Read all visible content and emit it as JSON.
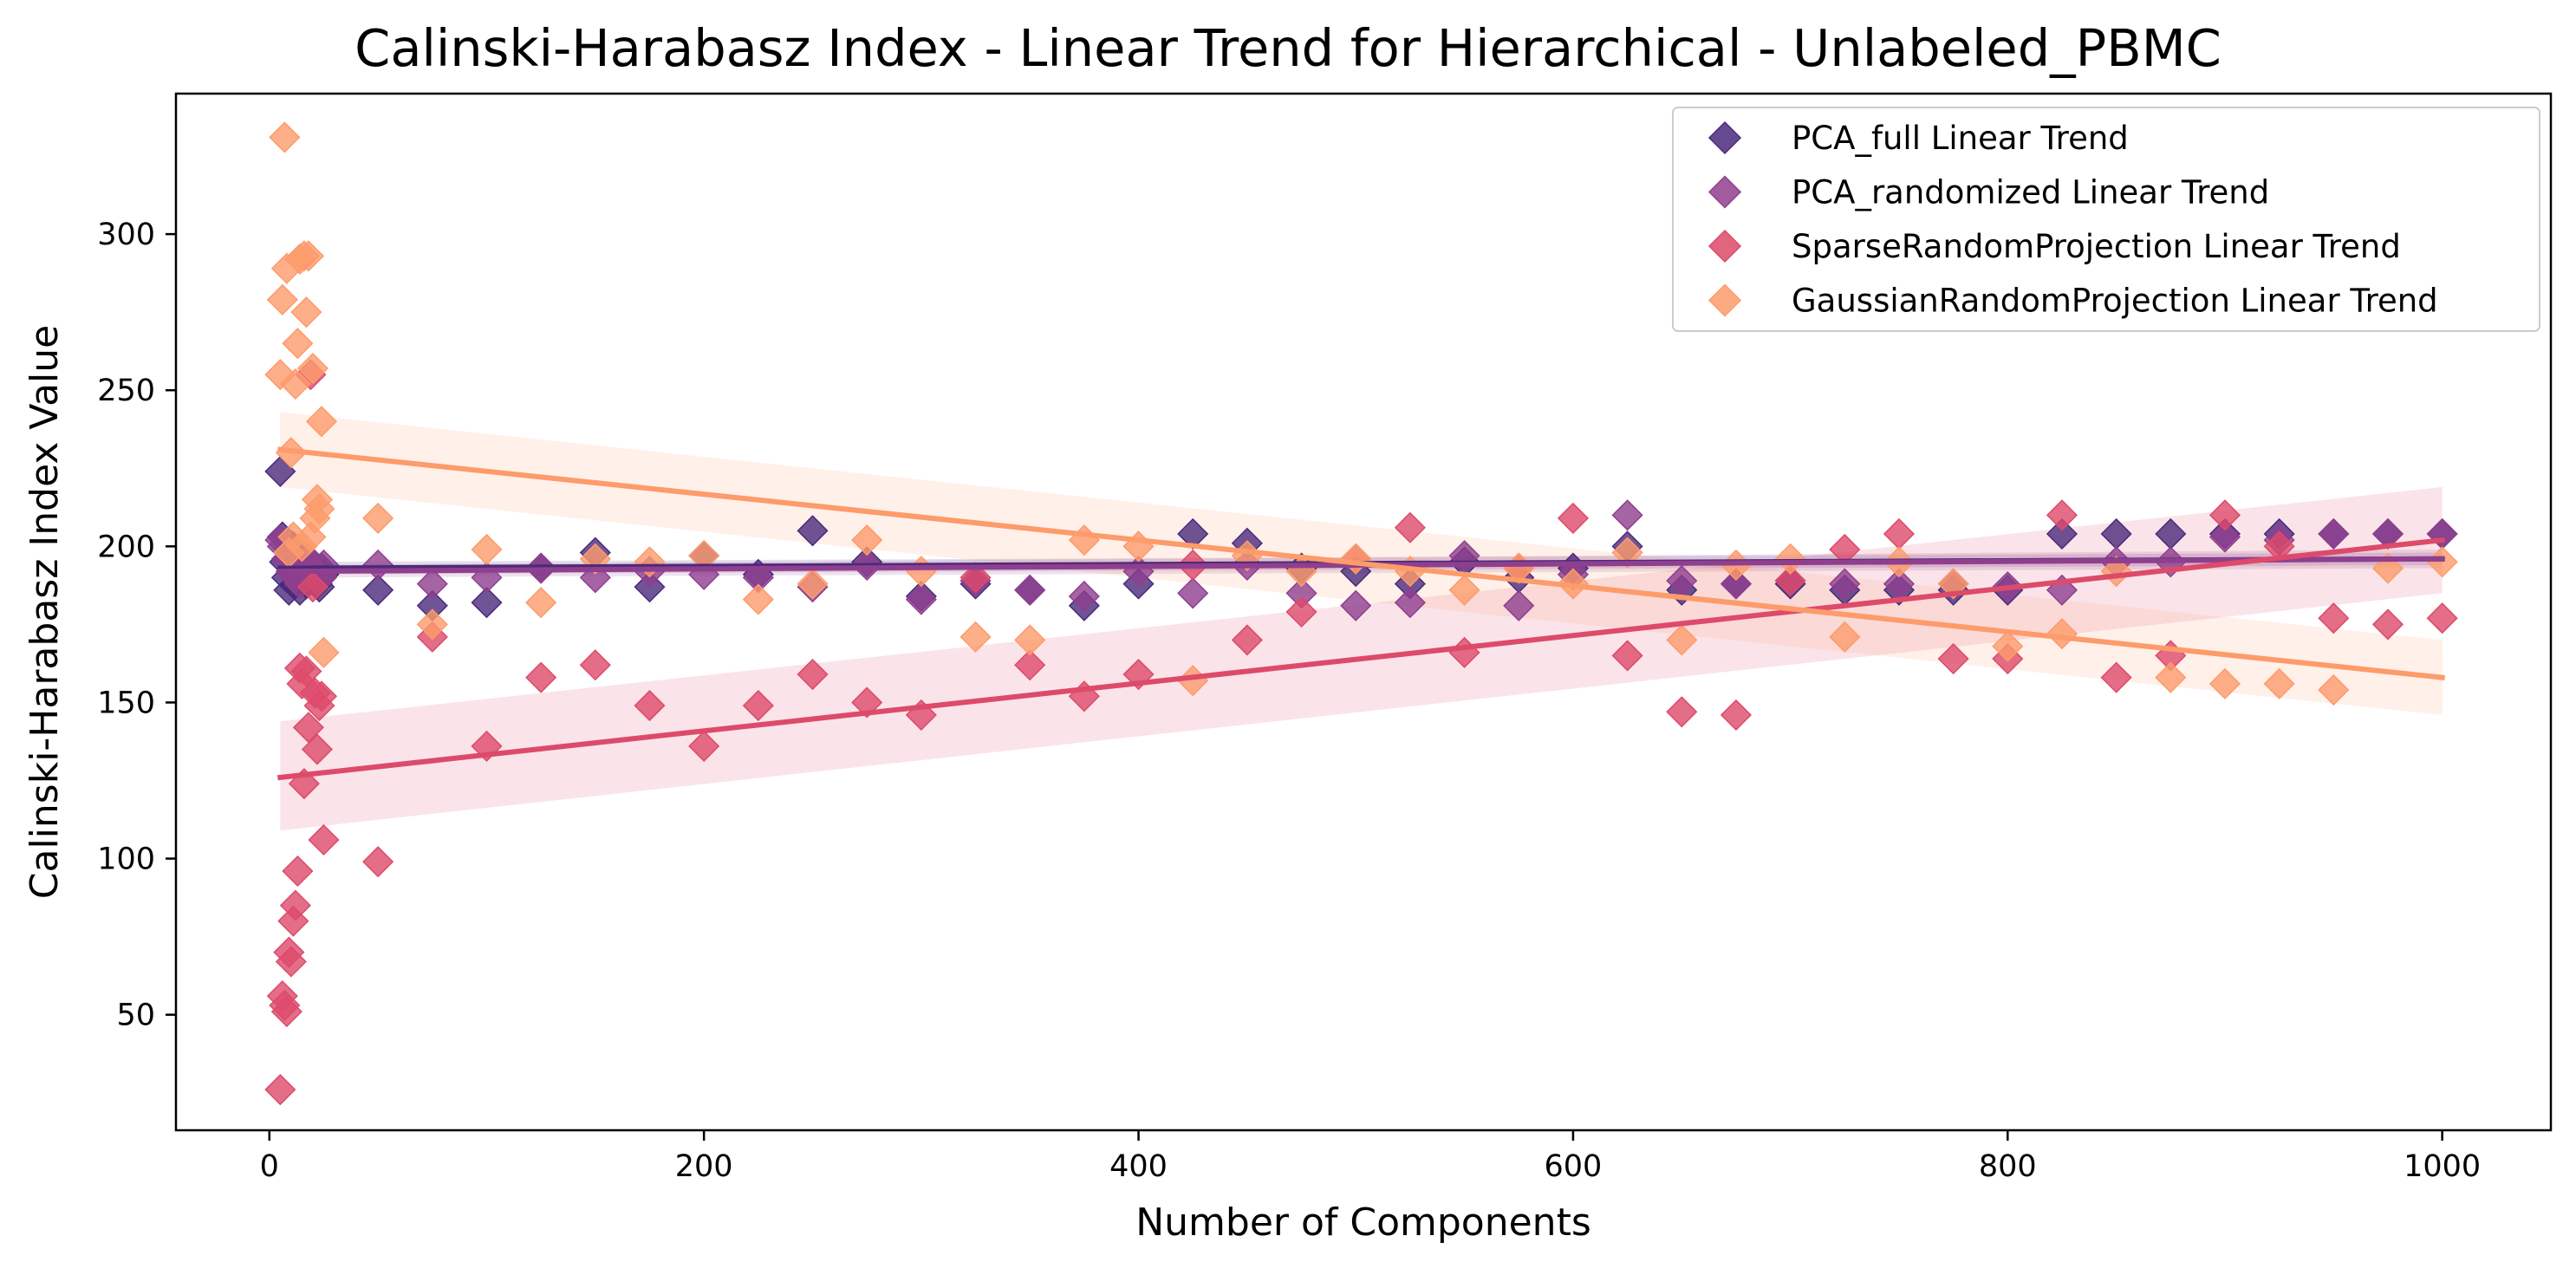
{
  "chart_data": {
    "type": "scatter",
    "title": "Calinski-Harabasz Index - Linear Trend for Hierarchical - Unlabeled_PBMC",
    "xlabel": "Number of Components",
    "ylabel": "Calinski-Harabasz Index Value",
    "xlim": [
      -43,
      1050
    ],
    "ylim": [
      13,
      345
    ],
    "x_ticks": [
      0,
      200,
      400,
      600,
      800,
      1000
    ],
    "x_tick_labels": [
      "0",
      "200",
      "400",
      "600",
      "800",
      "1000"
    ],
    "y_ticks": [
      50,
      100,
      150,
      200,
      250,
      300
    ],
    "y_tick_labels": [
      "50",
      "100",
      "150",
      "200",
      "250",
      "300"
    ],
    "grid": false,
    "legend_position": "top-right",
    "marker": "diamond",
    "series": [
      {
        "name": "PCA_full Linear Trend",
        "color": "#4b2a7b",
        "points": [
          [
            5,
            224
          ],
          [
            6,
            203
          ],
          [
            7,
            195
          ],
          [
            8,
            190
          ],
          [
            9,
            186
          ],
          [
            10,
            199
          ],
          [
            11,
            200
          ],
          [
            12,
            188
          ],
          [
            13,
            195
          ],
          [
            14,
            186
          ],
          [
            15,
            194
          ],
          [
            16,
            190
          ],
          [
            17,
            188
          ],
          [
            18,
            192
          ],
          [
            19,
            195
          ],
          [
            20,
            191
          ],
          [
            21,
            189
          ],
          [
            22,
            188
          ],
          [
            23,
            187
          ],
          [
            24,
            193
          ],
          [
            25,
            191
          ],
          [
            50,
            186
          ],
          [
            75,
            181
          ],
          [
            100,
            182
          ],
          [
            125,
            193
          ],
          [
            150,
            198
          ],
          [
            175,
            187
          ],
          [
            200,
            197
          ],
          [
            225,
            191
          ],
          [
            250,
            205
          ],
          [
            275,
            195
          ],
          [
            300,
            184
          ],
          [
            325,
            188
          ],
          [
            350,
            186
          ],
          [
            375,
            181
          ],
          [
            400,
            188
          ],
          [
            425,
            204
          ],
          [
            450,
            201
          ],
          [
            475,
            193
          ],
          [
            500,
            192
          ],
          [
            525,
            188
          ],
          [
            550,
            195
          ],
          [
            575,
            190
          ],
          [
            600,
            193
          ],
          [
            625,
            200
          ],
          [
            650,
            186
          ],
          [
            675,
            188
          ],
          [
            700,
            188
          ],
          [
            725,
            186
          ],
          [
            750,
            186
          ],
          [
            775,
            186
          ],
          [
            800,
            186
          ],
          [
            825,
            204
          ],
          [
            850,
            204
          ],
          [
            875,
            204
          ],
          [
            900,
            204
          ],
          [
            925,
            204
          ],
          [
            950,
            204
          ],
          [
            975,
            204
          ],
          [
            1000,
            204
          ]
        ],
        "trend": {
          "x": [
            5,
            1000
          ],
          "y": [
            193,
            196
          ]
        },
        "ci_lower": [
          191,
          194
        ],
        "ci_upper": [
          195,
          198
        ]
      },
      {
        "name": "PCA_randomized Linear Trend",
        "color": "#8f3f8e",
        "points": [
          [
            5,
            202
          ],
          [
            6,
            200
          ],
          [
            8,
            196
          ],
          [
            10,
            192
          ],
          [
            12,
            190
          ],
          [
            14,
            188
          ],
          [
            16,
            194
          ],
          [
            18,
            196
          ],
          [
            20,
            193
          ],
          [
            22,
            189
          ],
          [
            24,
            190
          ],
          [
            25,
            194
          ],
          [
            50,
            194
          ],
          [
            75,
            188
          ],
          [
            100,
            190
          ],
          [
            125,
            193
          ],
          [
            150,
            190
          ],
          [
            175,
            192
          ],
          [
            200,
            191
          ],
          [
            225,
            190
          ],
          [
            250,
            187
          ],
          [
            275,
            194
          ],
          [
            300,
            183
          ],
          [
            325,
            189
          ],
          [
            350,
            186
          ],
          [
            375,
            184
          ],
          [
            400,
            192
          ],
          [
            425,
            185
          ],
          [
            450,
            194
          ],
          [
            475,
            185
          ],
          [
            500,
            181
          ],
          [
            525,
            182
          ],
          [
            550,
            197
          ],
          [
            575,
            181
          ],
          [
            600,
            191
          ],
          [
            625,
            210
          ],
          [
            650,
            189
          ],
          [
            675,
            188
          ],
          [
            700,
            189
          ],
          [
            725,
            188
          ],
          [
            750,
            188
          ],
          [
            775,
            188
          ],
          [
            800,
            187
          ],
          [
            825,
            186
          ],
          [
            850,
            195
          ],
          [
            875,
            195
          ],
          [
            900,
            203
          ],
          [
            925,
            202
          ],
          [
            950,
            204
          ],
          [
            975,
            204
          ],
          [
            1000,
            204
          ]
        ],
        "trend": {
          "x": [
            5,
            1000
          ],
          "y": [
            192,
            196
          ]
        },
        "ci_lower": [
          190,
          193
        ],
        "ci_upper": [
          194,
          199
        ]
      },
      {
        "name": "SparseRandomProjection Linear Trend",
        "color": "#dd4a6a",
        "points": [
          [
            5,
            26
          ],
          [
            6,
            56
          ],
          [
            7,
            53
          ],
          [
            8,
            51
          ],
          [
            9,
            70
          ],
          [
            10,
            67
          ],
          [
            11,
            80
          ],
          [
            12,
            85
          ],
          [
            13,
            96
          ],
          [
            14,
            161
          ],
          [
            15,
            156
          ],
          [
            16,
            124
          ],
          [
            17,
            160
          ],
          [
            18,
            142
          ],
          [
            19,
            255
          ],
          [
            20,
            187
          ],
          [
            21,
            153
          ],
          [
            22,
            135
          ],
          [
            23,
            149
          ],
          [
            24,
            152
          ],
          [
            25,
            106
          ],
          [
            50,
            99
          ],
          [
            75,
            171
          ],
          [
            100,
            136
          ],
          [
            125,
            158
          ],
          [
            150,
            162
          ],
          [
            175,
            149
          ],
          [
            200,
            136
          ],
          [
            225,
            149
          ],
          [
            250,
            159
          ],
          [
            275,
            150
          ],
          [
            300,
            146
          ],
          [
            325,
            190
          ],
          [
            350,
            162
          ],
          [
            375,
            152
          ],
          [
            400,
            159
          ],
          [
            425,
            194
          ],
          [
            450,
            170
          ],
          [
            475,
            179
          ],
          [
            500,
            196
          ],
          [
            525,
            206
          ],
          [
            550,
            166
          ],
          [
            575,
            193
          ],
          [
            600,
            209
          ],
          [
            625,
            165
          ],
          [
            650,
            147
          ],
          [
            675,
            146
          ],
          [
            700,
            189
          ],
          [
            725,
            199
          ],
          [
            750,
            204
          ],
          [
            775,
            164
          ],
          [
            800,
            164
          ],
          [
            825,
            210
          ],
          [
            850,
            158
          ],
          [
            875,
            165
          ],
          [
            900,
            210
          ],
          [
            925,
            200
          ],
          [
            950,
            177
          ],
          [
            975,
            175
          ],
          [
            1000,
            177
          ]
        ],
        "trend": {
          "x": [
            5,
            1000
          ],
          "y": [
            126,
            202
          ]
        },
        "ci_lower": [
          109,
          185
        ],
        "ci_upper": [
          144,
          219
        ]
      },
      {
        "name": "GaussianRandomProjection Linear Trend",
        "color": "#fd9b6b",
        "points": [
          [
            5,
            255
          ],
          [
            6,
            279
          ],
          [
            7,
            331
          ],
          [
            8,
            289
          ],
          [
            9,
            198
          ],
          [
            10,
            230
          ],
          [
            11,
            203
          ],
          [
            12,
            252
          ],
          [
            13,
            265
          ],
          [
            14,
            292
          ],
          [
            15,
            200
          ],
          [
            16,
            293
          ],
          [
            17,
            275
          ],
          [
            18,
            293
          ],
          [
            19,
            203
          ],
          [
            20,
            257
          ],
          [
            21,
            209
          ],
          [
            22,
            215
          ],
          [
            23,
            212
          ],
          [
            24,
            240
          ],
          [
            25,
            166
          ],
          [
            50,
            209
          ],
          [
            75,
            175
          ],
          [
            100,
            199
          ],
          [
            125,
            182
          ],
          [
            150,
            196
          ],
          [
            175,
            195
          ],
          [
            200,
            197
          ],
          [
            225,
            183
          ],
          [
            250,
            188
          ],
          [
            275,
            202
          ],
          [
            300,
            192
          ],
          [
            325,
            171
          ],
          [
            350,
            170
          ],
          [
            375,
            202
          ],
          [
            400,
            200
          ],
          [
            425,
            157
          ],
          [
            450,
            197
          ],
          [
            475,
            192
          ],
          [
            500,
            196
          ],
          [
            525,
            192
          ],
          [
            550,
            186
          ],
          [
            575,
            193
          ],
          [
            600,
            188
          ],
          [
            625,
            198
          ],
          [
            650,
            170
          ],
          [
            675,
            194
          ],
          [
            700,
            196
          ],
          [
            725,
            171
          ],
          [
            750,
            195
          ],
          [
            775,
            188
          ],
          [
            800,
            168
          ],
          [
            825,
            172
          ],
          [
            850,
            192
          ],
          [
            875,
            158
          ],
          [
            900,
            156
          ],
          [
            925,
            156
          ],
          [
            950,
            154
          ],
          [
            975,
            193
          ],
          [
            1000,
            195
          ]
        ],
        "trend": {
          "x": [
            5,
            1000
          ],
          "y": [
            231,
            158
          ]
        },
        "ci_lower": [
          219,
          146
        ],
        "ci_upper": [
          243,
          170
        ]
      }
    ]
  }
}
